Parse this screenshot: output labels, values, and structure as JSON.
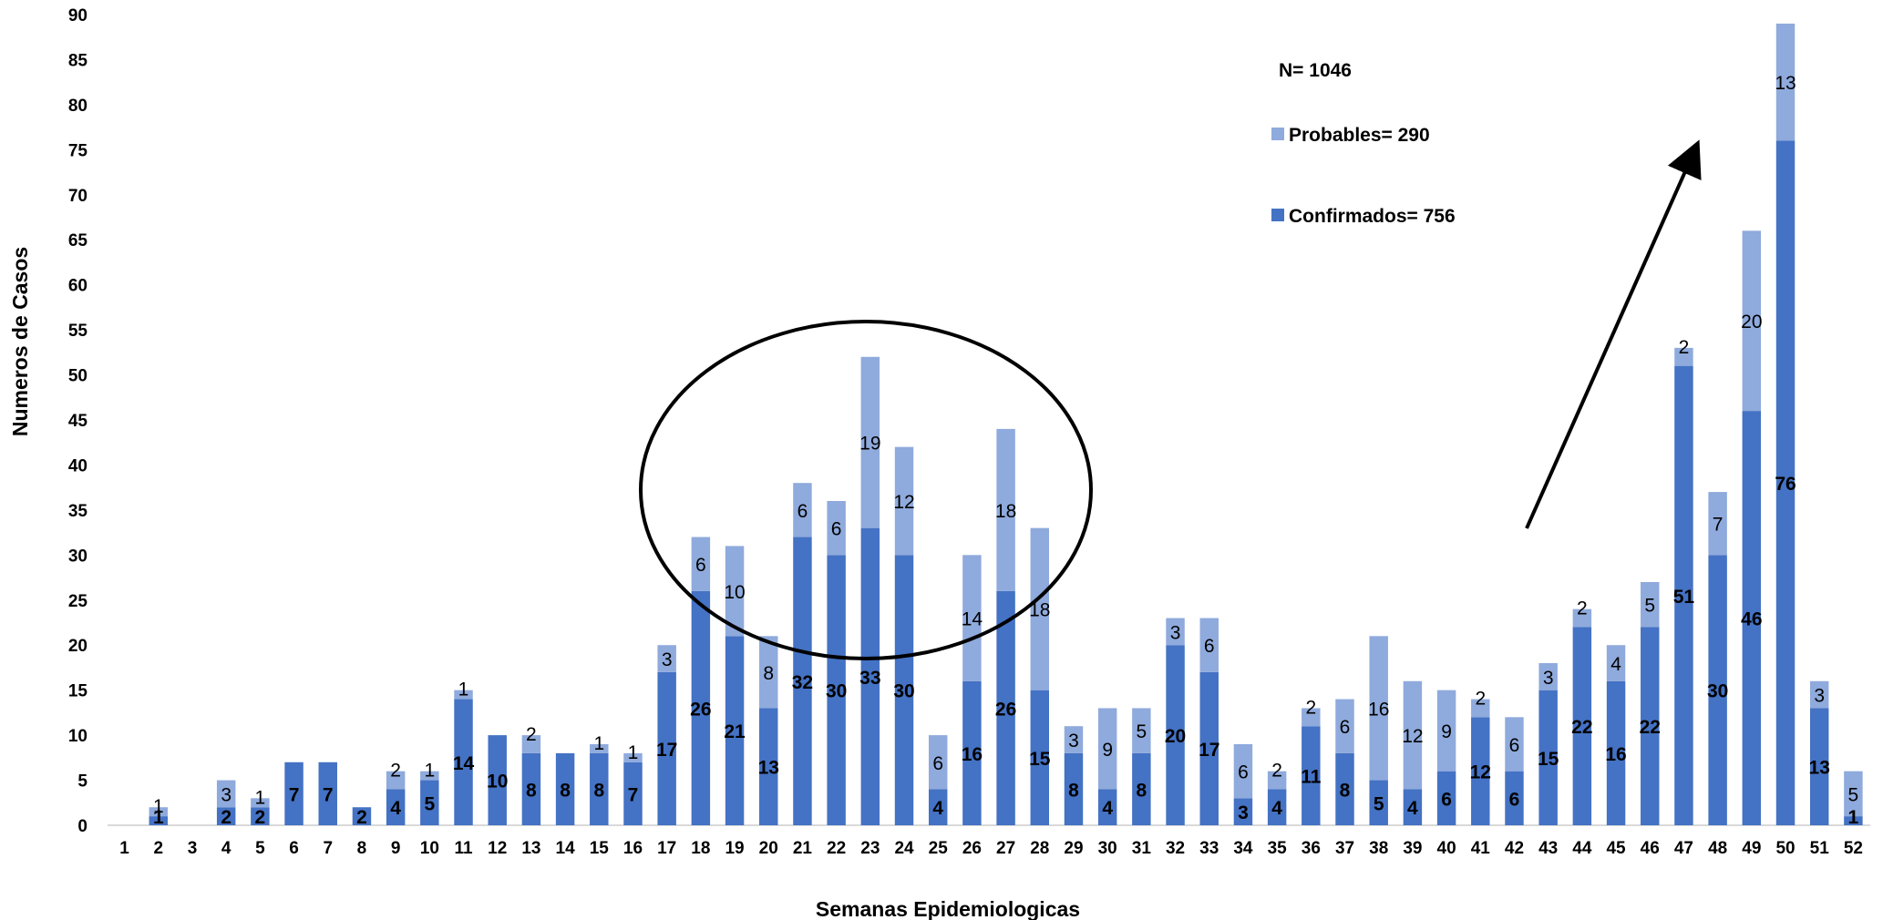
{
  "chart_data": {
    "type": "bar",
    "stacked": true,
    "title": "",
    "xlabel": "Semanas Epidemiologicas",
    "ylabel": "Numeros de Casos",
    "ylim": [
      0,
      90
    ],
    "y_ticks": [
      0,
      5,
      10,
      15,
      20,
      25,
      30,
      35,
      40,
      45,
      50,
      55,
      60,
      65,
      70,
      75,
      80,
      85,
      90
    ],
    "categories": [
      "1",
      "2",
      "3",
      "4",
      "5",
      "6",
      "7",
      "8",
      "9",
      "10",
      "11",
      "12",
      "13",
      "14",
      "15",
      "16",
      "17",
      "18",
      "19",
      "20",
      "21",
      "22",
      "23",
      "24",
      "25",
      "26",
      "27",
      "28",
      "29",
      "30",
      "31",
      "32",
      "33",
      "34",
      "35",
      "36",
      "37",
      "38",
      "39",
      "40",
      "41",
      "42",
      "43",
      "44",
      "45",
      "46",
      "47",
      "48",
      "49",
      "50",
      "51",
      "52"
    ],
    "series": [
      {
        "name": "Confirmados",
        "color": "#4472C4",
        "values": [
          0,
          1,
          0,
          2,
          2,
          7,
          7,
          2,
          4,
          5,
          14,
          10,
          8,
          8,
          8,
          7,
          17,
          26,
          21,
          13,
          32,
          30,
          33,
          30,
          4,
          16,
          26,
          15,
          8,
          4,
          8,
          20,
          17,
          3,
          4,
          11,
          8,
          5,
          4,
          6,
          12,
          6,
          15,
          22,
          16,
          22,
          51,
          30,
          46,
          76,
          13,
          1
        ]
      },
      {
        "name": "Probables",
        "color": "#8FAADC",
        "values": [
          0,
          1,
          0,
          3,
          1,
          0,
          0,
          0,
          2,
          1,
          1,
          0,
          2,
          0,
          1,
          1,
          3,
          6,
          10,
          8,
          6,
          6,
          19,
          12,
          6,
          14,
          18,
          18,
          3,
          9,
          5,
          3,
          6,
          6,
          2,
          2,
          6,
          16,
          12,
          9,
          2,
          6,
          3,
          2,
          4,
          5,
          2,
          7,
          20,
          13,
          3,
          5
        ]
      }
    ],
    "legend": {
      "placement": "top-right",
      "total": "N= 1046",
      "entries": [
        "Probables= 290",
        "Confirmados= 756"
      ]
    },
    "annotations": [
      "ellipse around weeks 18-28",
      "upward arrow toward weeks 47-50"
    ],
    "grid": false
  }
}
